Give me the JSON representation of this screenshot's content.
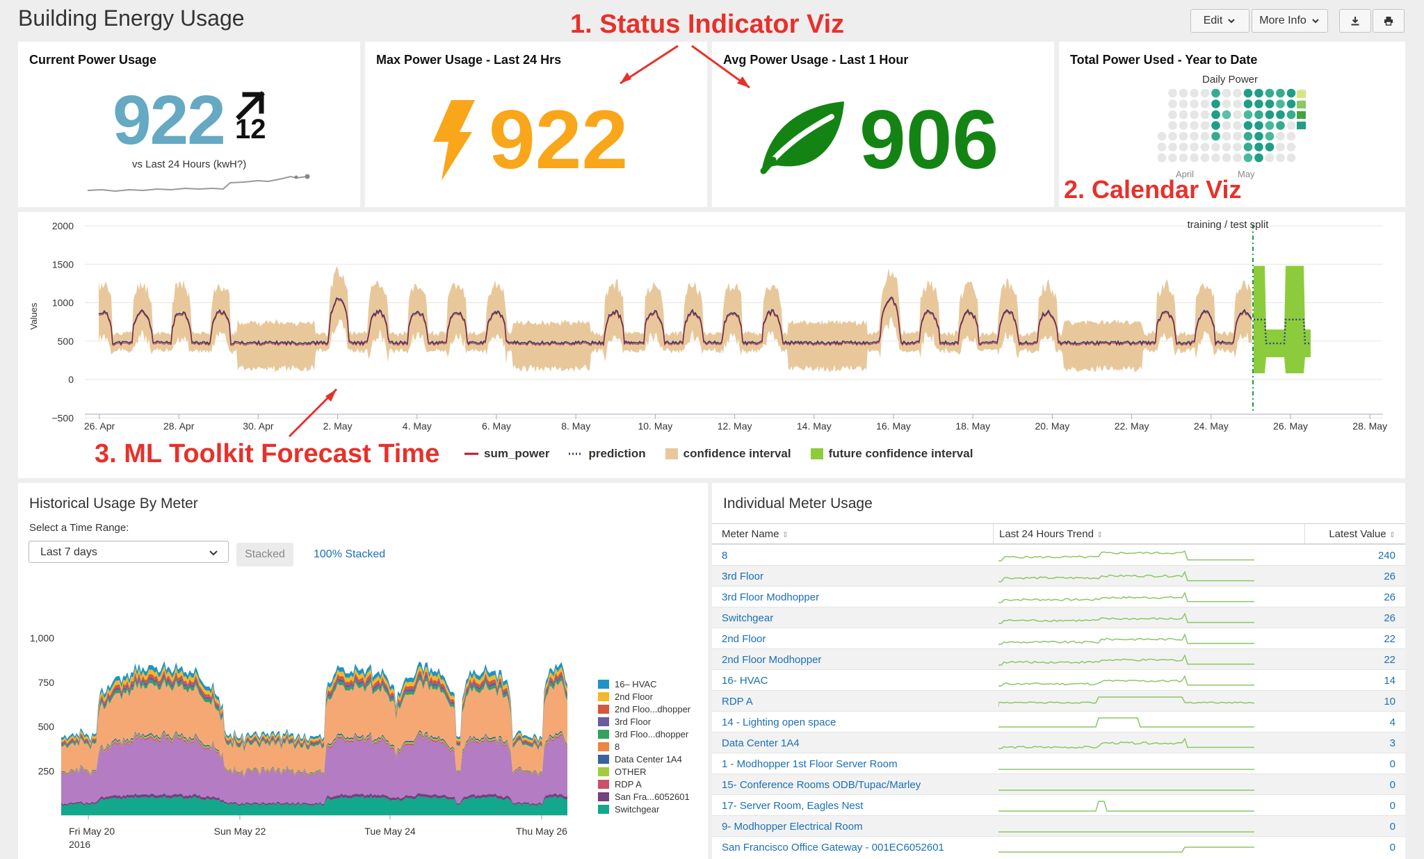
{
  "header": {
    "title": "Building Energy Usage",
    "edit_label": "Edit",
    "more_info_label": "More Info",
    "download_icon": "download-icon",
    "print_icon": "print-icon"
  },
  "annotations": {
    "status": "1. Status Indicator Viz",
    "calendar": "2. Calendar Viz",
    "forecast": "3. ML Toolkit Forecast Time"
  },
  "panels": {
    "current": {
      "title": "Current Power Usage",
      "value": "922",
      "delta": "12",
      "caption": "vs Last 24 Hours (kwH?)",
      "value_color": "#65a9c3",
      "trend_icon": "arrow-up-right-icon"
    },
    "max": {
      "title": "Max Power Usage - Last 24 Hrs",
      "value": "922",
      "color": "#f9a61a",
      "icon": "bolt-icon"
    },
    "avg": {
      "title": "Avg Power Usage - Last 1 Hour",
      "value": "906",
      "color": "#138413",
      "icon": "leaf-icon"
    },
    "total": {
      "title": "Total Power Used - Year to Date",
      "subtitle": "Daily Power",
      "month_labels": [
        "April",
        "May"
      ]
    }
  },
  "forecast_chart": {
    "y_label": "Values",
    "y_ticks": [
      "2000",
      "1500",
      "1000",
      "500",
      "0",
      "−500"
    ],
    "x_ticks": [
      "26. Apr",
      "28. Apr",
      "30. Apr",
      "2. May",
      "4. May",
      "6. May",
      "8. May",
      "10. May",
      "12. May",
      "14. May",
      "16. May",
      "18. May",
      "20. May",
      "22. May",
      "24. May",
      "26. May",
      "28. May"
    ],
    "split_label": "training / test split",
    "legend": [
      "sum_power",
      "prediction",
      "confidence interval",
      "future confidence interval"
    ],
    "colors": {
      "sum_power": "#b2182b",
      "prediction": "#2c3e7a",
      "confidence": "#e8c89a",
      "future": "#8ccc3c",
      "split": "#1a9a4a"
    }
  },
  "historical": {
    "title": "Historical Usage By Meter",
    "range_label": "Select a Time Range:",
    "range_value": "Last 7 days",
    "stacked_label": "Stacked",
    "pct_stacked_label": "100% Stacked",
    "y_ticks": [
      "1,000",
      "750",
      "500",
      "250"
    ],
    "x_ticks": [
      "Fri May 20",
      "Sun May 22",
      "Tue May 24",
      "Thu May 26"
    ],
    "x_year": "2016",
    "legend": [
      {
        "name": "16– HVAC",
        "color": "#1e93c6"
      },
      {
        "name": "2nd Floor",
        "color": "#f2b827"
      },
      {
        "name": "2nd Floo...dhopper",
        "color": "#d6563c"
      },
      {
        "name": "3rd Floor",
        "color": "#6a5c9e"
      },
      {
        "name": "3rd Floo...dhopper",
        "color": "#31a35f"
      },
      {
        "name": "8",
        "color": "#ed8440"
      },
      {
        "name": "Data Center 1A4",
        "color": "#3863a0"
      },
      {
        "name": "OTHER",
        "color": "#a2cc3e"
      },
      {
        "name": "RDP A",
        "color": "#cc5068"
      },
      {
        "name": "San Fra...6052601",
        "color": "#73427f"
      },
      {
        "name": "Switchgear",
        "color": "#11a88b"
      }
    ]
  },
  "meters": {
    "title": "Individual Meter Usage",
    "columns": [
      "Meter Name",
      "Last 24 Hours Trend",
      "Latest Value"
    ],
    "rows": [
      {
        "name": "8",
        "value": "240"
      },
      {
        "name": "3rd Floor",
        "value": "26"
      },
      {
        "name": "3rd Floor Modhopper",
        "value": "26"
      },
      {
        "name": "Switchgear",
        "value": "26"
      },
      {
        "name": "2nd Floor",
        "value": "22"
      },
      {
        "name": "2nd Floor Modhopper",
        "value": "22"
      },
      {
        "name": "16- HVAC",
        "value": "14"
      },
      {
        "name": "RDP A",
        "value": "10"
      },
      {
        "name": "14 - Lighting open space",
        "value": "4"
      },
      {
        "name": "Data Center 1A4",
        "value": "3"
      },
      {
        "name": "1 - Modhopper 1st Floor Server Room",
        "value": "0"
      },
      {
        "name": "15- Conference Rooms ODB/Tupac/Marley",
        "value": "0"
      },
      {
        "name": "17- Server Room, Eagles Nest",
        "value": "0"
      },
      {
        "name": "9- Modhopper Electrical Room",
        "value": "0"
      },
      {
        "name": "San Francisco Office Gateway - 001EC6052601",
        "value": "0"
      }
    ]
  }
}
